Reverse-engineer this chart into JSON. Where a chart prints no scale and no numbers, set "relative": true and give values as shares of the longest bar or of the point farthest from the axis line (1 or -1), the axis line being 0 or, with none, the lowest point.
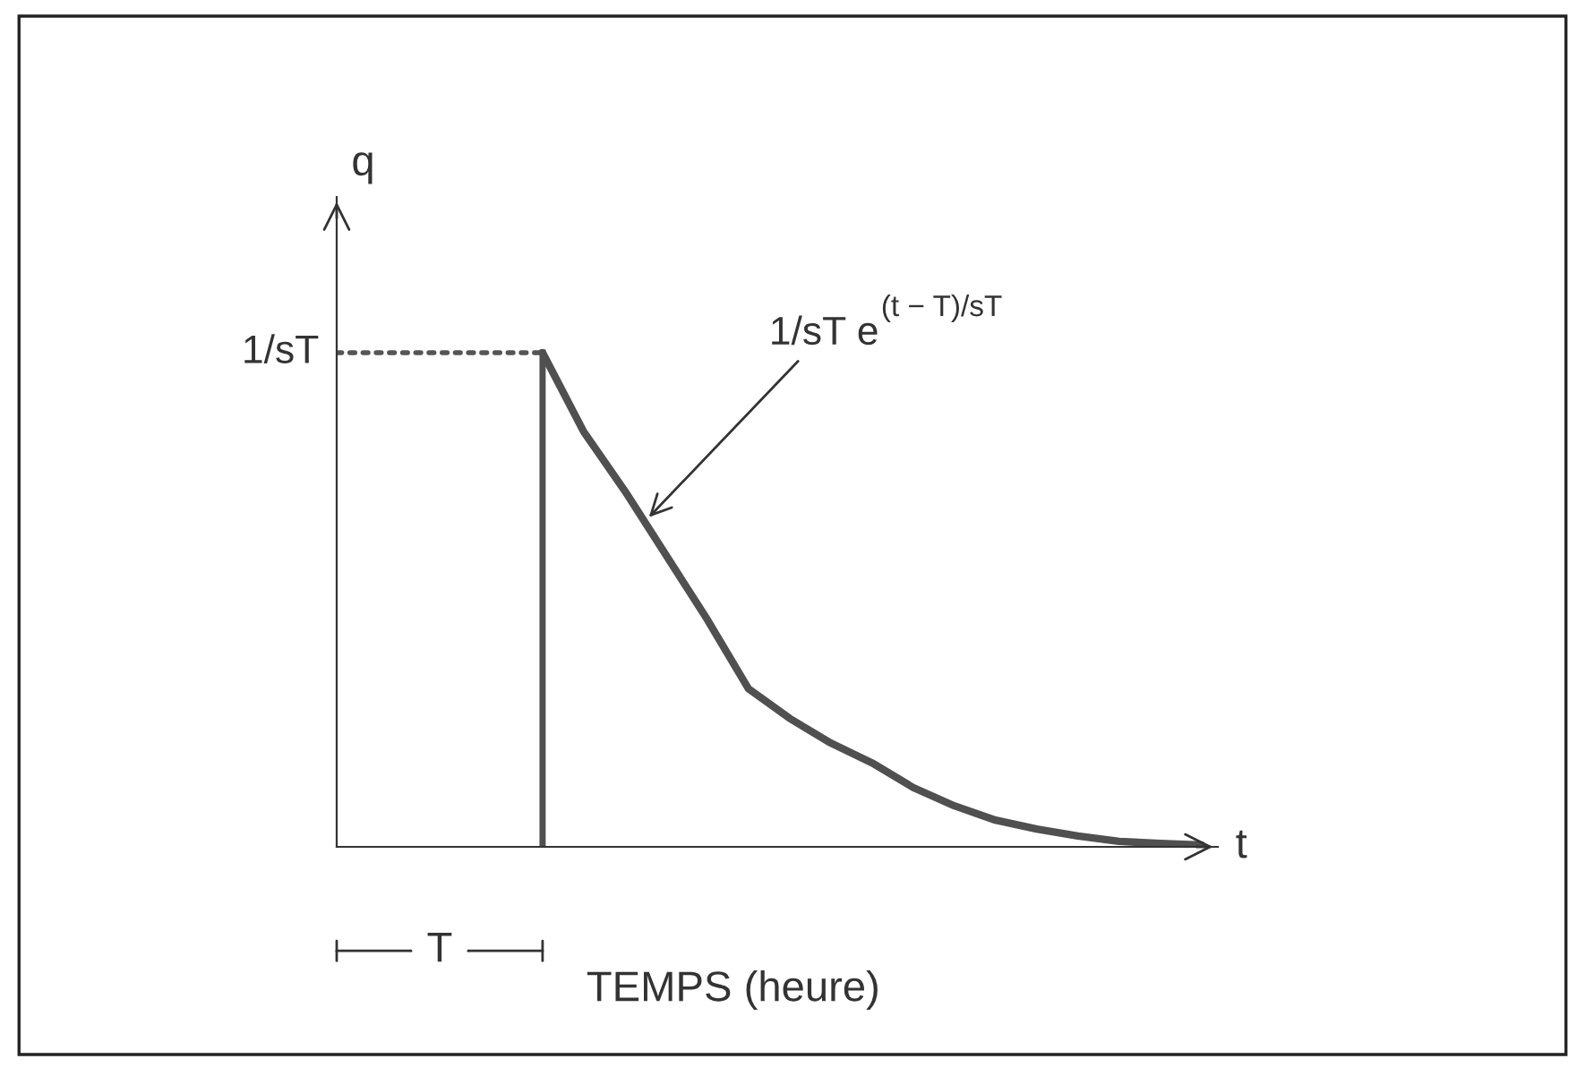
{
  "chart_data": {
    "type": "line",
    "relative": true,
    "xlabel": "TEMPS (heure)",
    "ylabel": "q",
    "categories": [
      null,
      null,
      null,
      null,
      null,
      null,
      null,
      null,
      null,
      null,
      null,
      null,
      null,
      null,
      null,
      null,
      null,
      null,
      null,
      null,
      null,
      null
    ],
    "series": [
      {
        "color": "#555555",
        "line_style": "dotted",
        "values": [
          1,
          1,
          1,
          1,
          1,
          1,
          null,
          null,
          null,
          null,
          null,
          null,
          null,
          null,
          null,
          null,
          null,
          null,
          null,
          null,
          null,
          null
        ]
      },
      {
        "color": "#505050",
        "line_style": "solid",
        "values": [
          null,
          null,
          null,
          null,
          null,
          1,
          0.84,
          0.72,
          0.59,
          0.46,
          0.32,
          0.26,
          0.21,
          0.17,
          0.12,
          0.083,
          0.054,
          0.036,
          0.022,
          0.011,
          0.007,
          0.004
        ]
      }
    ],
    "annotations": [
      "t",
      "T",
      "1/sT",
      "1/sT e$^{(t − T)/sT}$"
    ],
    "marker": "none",
    "grid": false,
    "legend": false
  }
}
